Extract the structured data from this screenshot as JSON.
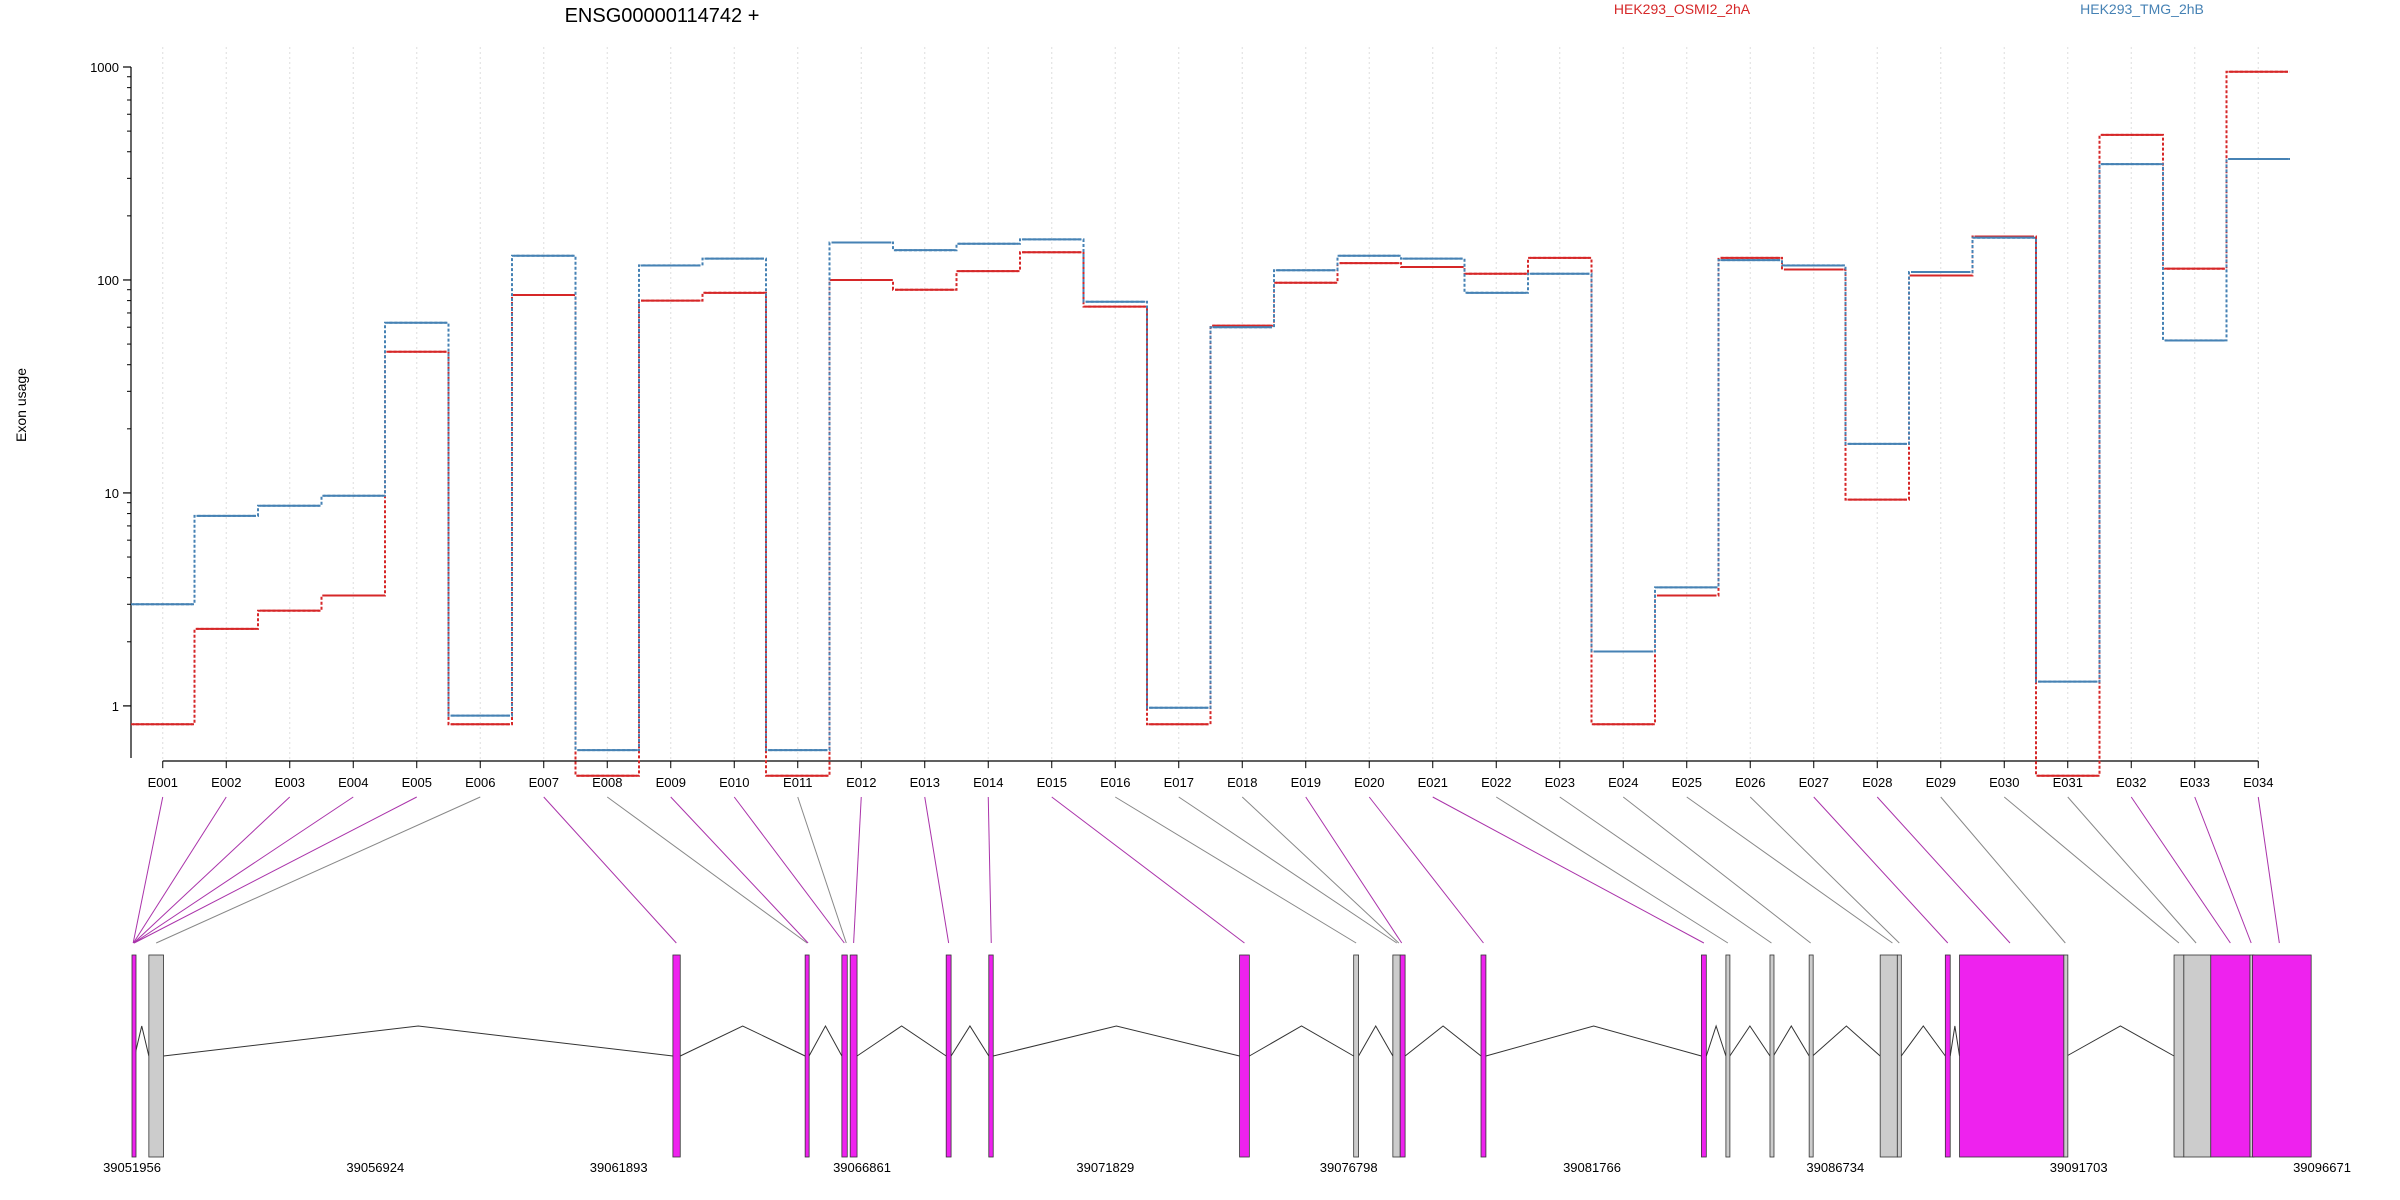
{
  "chart_data": {
    "type": "line",
    "title": "ENSG00000114742 +",
    "ylabel": "Exon usage",
    "xlabel": "",
    "y_scale": "log",
    "ylim": [
      0.5,
      1000
    ],
    "y_ticks": [
      1,
      10,
      100,
      1000
    ],
    "y_tick_labels": [
      "1",
      "10",
      "100",
      "1000"
    ],
    "grid": "vertical dotted lines at exon centers",
    "legend_position": "top",
    "colors": {
      "HEK293_OSMI2_2hA": "#d62728",
      "HEK293_TMG_2hB": "#4682b4",
      "exon_highlight": "#ee22ee",
      "exon_plain": "#cccccc"
    },
    "categories": [
      "E001",
      "E002",
      "E003",
      "E004",
      "E005",
      "E006",
      "E007",
      "E008",
      "E009",
      "E010",
      "E011",
      "E012",
      "E013",
      "E014",
      "E015",
      "E016",
      "E017",
      "E018",
      "E019",
      "E020",
      "E021",
      "E022",
      "E023",
      "E024",
      "E025",
      "E026",
      "E027",
      "E028",
      "E029",
      "E030",
      "E031",
      "E032",
      "E033",
      "E034"
    ],
    "series": [
      {
        "name": "HEK293_OSMI2_2hA",
        "color": "#d62728",
        "values": [
          0.82,
          2.3,
          2.8,
          3.3,
          46,
          0.82,
          85,
          0.47,
          80,
          87,
          0.47,
          100,
          90,
          110,
          135,
          75,
          0.82,
          61,
          97,
          120,
          115,
          107,
          127,
          0.82,
          3.3,
          127,
          112,
          9.3,
          105,
          160,
          0.47,
          480,
          113,
          950
        ]
      },
      {
        "name": "HEK293_TMG_2hB",
        "color": "#4682b4",
        "values": [
          3.0,
          7.8,
          8.7,
          9.7,
          63,
          0.9,
          130,
          0.62,
          117,
          126,
          0.62,
          150,
          138,
          148,
          155,
          79,
          0.98,
          60,
          111,
          130,
          126,
          87,
          107,
          1.8,
          3.6,
          124,
          117,
          17,
          109,
          158,
          1.3,
          350,
          52,
          370
        ]
      }
    ],
    "gene_model": {
      "coordinate_ticks": [
        "39051956",
        "39056924",
        "39061893",
        "39066861",
        "39071829",
        "39076798",
        "39081766",
        "39086734",
        "39091703",
        "39096671"
      ],
      "exons": [
        {
          "start": 39051956,
          "end": 39052010,
          "highlight": true
        },
        {
          "start": 39052300,
          "end": 39052600,
          "highlight": false
        },
        {
          "start": 39063000,
          "end": 39063150,
          "highlight": true
        },
        {
          "start": 39065700,
          "end": 39065780,
          "highlight": true
        },
        {
          "start": 39066450,
          "end": 39066560,
          "highlight": true
        },
        {
          "start": 39066620,
          "end": 39066760,
          "highlight": true
        },
        {
          "start": 39068580,
          "end": 39068680,
          "highlight": true
        },
        {
          "start": 39069450,
          "end": 39069540,
          "highlight": true
        },
        {
          "start": 39074570,
          "end": 39074770,
          "highlight": true
        },
        {
          "start": 39076900,
          "end": 39077000,
          "highlight": false
        },
        {
          "start": 39077700,
          "end": 39077850,
          "highlight": false
        },
        {
          "start": 39077850,
          "end": 39077950,
          "highlight": true
        },
        {
          "start": 39079500,
          "end": 39079600,
          "highlight": true
        },
        {
          "start": 39084000,
          "end": 39084100,
          "highlight": true
        },
        {
          "start": 39084500,
          "end": 39084580,
          "highlight": false
        },
        {
          "start": 39085400,
          "end": 39085470,
          "highlight": false
        },
        {
          "start": 39086200,
          "end": 39086270,
          "highlight": false
        },
        {
          "start": 39087650,
          "end": 39088000,
          "highlight": false
        },
        {
          "start": 39088000,
          "end": 39088080,
          "highlight": false
        },
        {
          "start": 39088980,
          "end": 39089080,
          "highlight": true
        },
        {
          "start": 39089270,
          "end": 39091400,
          "highlight": true
        },
        {
          "start": 39091400,
          "end": 39091460,
          "highlight": false
        },
        {
          "start": 39093650,
          "end": 39093850,
          "highlight": false
        },
        {
          "start": 39093850,
          "end": 39094400,
          "highlight": false
        },
        {
          "start": 39094400,
          "end": 39095200,
          "highlight": true
        },
        {
          "start": 39095200,
          "end": 39095250,
          "highlight": false
        },
        {
          "start": 39095250,
          "end": 39096450,
          "highlight": true
        }
      ],
      "exon_map": [
        {
          "exon": "E001",
          "coord": 39051980,
          "highlight": true
        },
        {
          "exon": "E002",
          "coord": 39051985,
          "highlight": true
        },
        {
          "exon": "E003",
          "coord": 39051990,
          "highlight": true
        },
        {
          "exon": "E004",
          "coord": 39051995,
          "highlight": true
        },
        {
          "exon": "E005",
          "coord": 39052000,
          "highlight": true
        },
        {
          "exon": "E006",
          "coord": 39052450,
          "highlight": false
        },
        {
          "exon": "E007",
          "coord": 39063070,
          "highlight": true
        },
        {
          "exon": "E008",
          "coord": 39065740,
          "highlight": false
        },
        {
          "exon": "E009",
          "coord": 39065760,
          "highlight": true
        },
        {
          "exon": "E010",
          "coord": 39066500,
          "highlight": true
        },
        {
          "exon": "E011",
          "coord": 39066540,
          "highlight": false
        },
        {
          "exon": "E012",
          "coord": 39066690,
          "highlight": true
        },
        {
          "exon": "E013",
          "coord": 39068630,
          "highlight": true
        },
        {
          "exon": "E014",
          "coord": 39069500,
          "highlight": true
        },
        {
          "exon": "E015",
          "coord": 39074670,
          "highlight": true
        },
        {
          "exon": "E016",
          "coord": 39076950,
          "highlight": false
        },
        {
          "exon": "E017",
          "coord": 39077780,
          "highlight": false
        },
        {
          "exon": "E018",
          "coord": 39077820,
          "highlight": false
        },
        {
          "exon": "E019",
          "coord": 39077880,
          "highlight": true
        },
        {
          "exon": "E020",
          "coord": 39079550,
          "highlight": true
        },
        {
          "exon": "E021",
          "coord": 39084050,
          "highlight": true
        },
        {
          "exon": "E022",
          "coord": 39084540,
          "highlight": false
        },
        {
          "exon": "E023",
          "coord": 39085430,
          "highlight": false
        },
        {
          "exon": "E024",
          "coord": 39086230,
          "highlight": false
        },
        {
          "exon": "E025",
          "coord": 39087900,
          "highlight": false
        },
        {
          "exon": "E026",
          "coord": 39088040,
          "highlight": false
        },
        {
          "exon": "E027",
          "coord": 39089030,
          "highlight": true
        },
        {
          "exon": "E028",
          "coord": 39090300,
          "highlight": true
        },
        {
          "exon": "E029",
          "coord": 39091430,
          "highlight": false
        },
        {
          "exon": "E030",
          "coord": 39093750,
          "highlight": false
        },
        {
          "exon": "E031",
          "coord": 39094100,
          "highlight": false
        },
        {
          "exon": "E032",
          "coord": 39094800,
          "highlight": true
        },
        {
          "exon": "E033",
          "coord": 39095225,
          "highlight": true
        },
        {
          "exon": "E034",
          "coord": 39095800,
          "highlight": true
        }
      ]
    }
  }
}
